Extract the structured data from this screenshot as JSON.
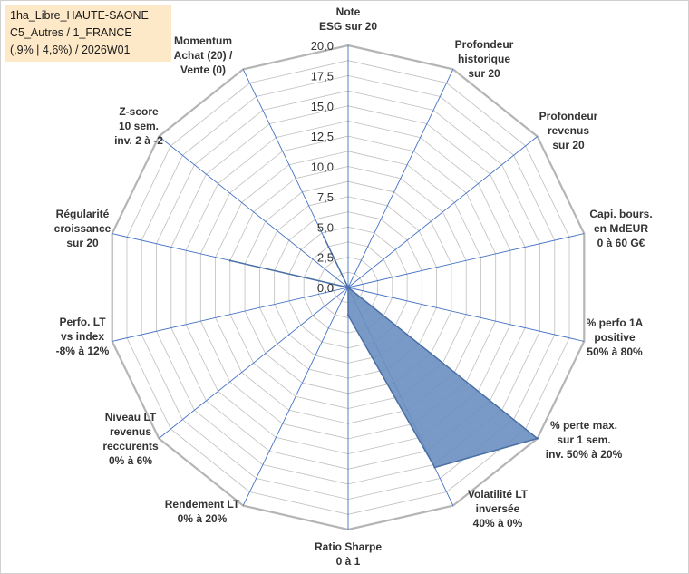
{
  "title_lines": [
    "1ha_Libre_HAUTE-SAONE",
    "C5_Autres / 1_FRANCE",
    "(,9% | 4,6%) / 2026W01"
  ],
  "chart_data": {
    "type": "radar",
    "title": "1ha_Libre_HAUTE-SAONE C5_Autres / 1_FRANCE (,9% | 4,6%) / 2026W01",
    "rlim": [
      0,
      20
    ],
    "ticks": [
      "0,0",
      "2,5",
      "5,0",
      "7,5",
      "10,0",
      "12,5",
      "15,0",
      "17,5",
      "20,0"
    ],
    "tick_values": [
      0,
      2.5,
      5,
      7.5,
      10,
      12.5,
      15,
      17.5,
      20
    ],
    "grid": true,
    "legend": "none",
    "fill_color": "#6a8fc0",
    "line_color": "#4a6fa5",
    "grid_color": "#bfbfbf",
    "spoke_color": "#4472c4",
    "categories": [
      [
        "Note",
        "ESG sur 20"
      ],
      [
        "Profondeur",
        "historique",
        "sur 20"
      ],
      [
        "Profondeur",
        "revenus",
        "sur 20"
      ],
      [
        "Capi. bours.",
        "en MdEUR",
        "0 à 60 G€"
      ],
      [
        "% perfo 1A",
        "positive",
        "50% à 80%"
      ],
      [
        "% perte max.",
        "sur 1 sem.",
        "inv. 50% à 20%"
      ],
      [
        "Volatilité LT",
        "inversée",
        "40% à 0%"
      ],
      [
        "Ratio Sharpe",
        "0 à 1"
      ],
      [
        "Rendement LT",
        "0% à 20%"
      ],
      [
        "Niveau LT",
        "revenus",
        "reccurents",
        "0% à 6%"
      ],
      [
        "Perfo. LT",
        "vs index",
        "-8% à 12%"
      ],
      [
        "Régularité",
        "croissance",
        "sur 20"
      ],
      [
        "Z-score",
        "10 sem.",
        "inv. 2 à -2"
      ],
      [
        "Momentum",
        "Achat (20) /",
        "Vente (0)"
      ]
    ],
    "series": [
      {
        "values": [
          0,
          0,
          0,
          0,
          0,
          20,
          16.5,
          2.3,
          0,
          0,
          0,
          10,
          0,
          4.6
        ]
      }
    ]
  }
}
